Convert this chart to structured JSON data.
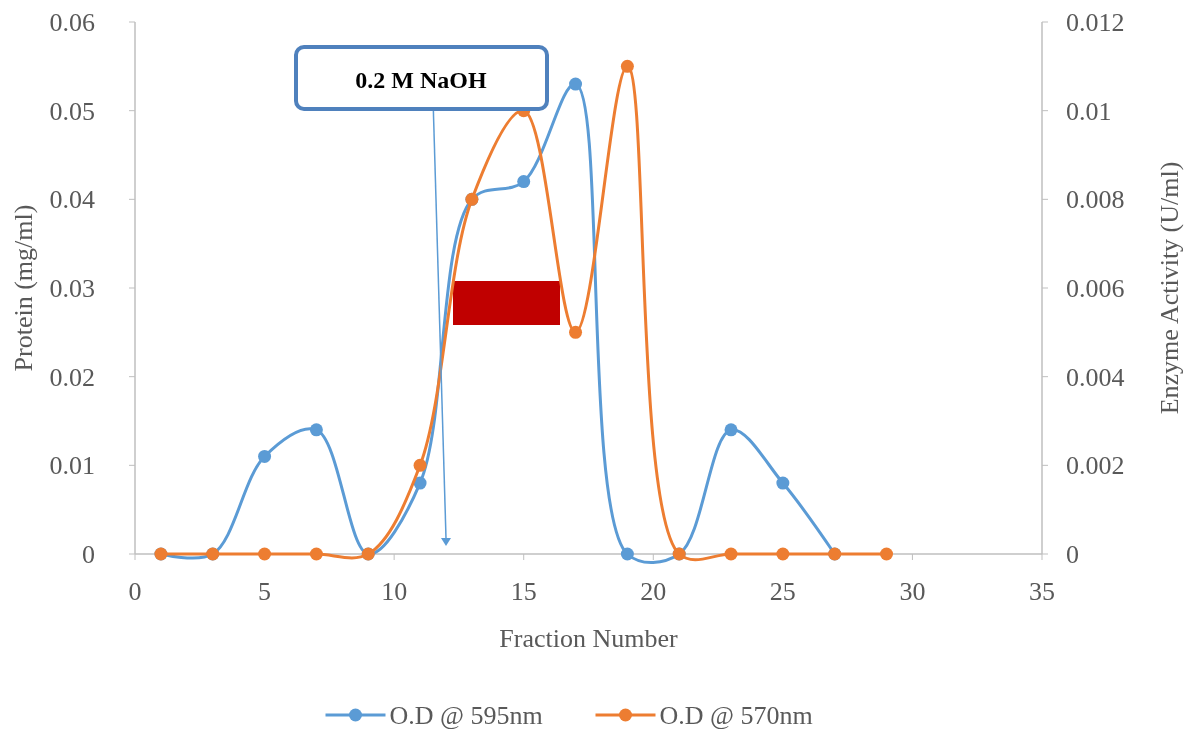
{
  "chart_data": {
    "type": "line",
    "xlabel": "Fraction Number",
    "ylabel": "Protein (mg/ml)",
    "y2label": "Enzyme Activity (U/ml)",
    "xlim": [
      0,
      35
    ],
    "xticks": [
      0,
      5,
      10,
      15,
      20,
      25,
      30,
      35
    ],
    "ylim": [
      0,
      0.06
    ],
    "yticks": [
      0,
      0.01,
      0.02,
      0.03,
      0.04,
      0.05,
      0.06
    ],
    "y2lim": [
      0,
      0.012
    ],
    "y2ticks": [
      0,
      0.002,
      0.004,
      0.006,
      0.008,
      0.01,
      0.012
    ],
    "series": [
      {
        "name": "O.D @ 595nm",
        "color": "#5b9bd5",
        "x": [
          1,
          3,
          5,
          7,
          9,
          11,
          13,
          15,
          17,
          19,
          21,
          23,
          25,
          27
        ],
        "values": [
          0,
          0,
          0.011,
          0.014,
          0,
          0.008,
          0.04,
          0.042,
          0.053,
          0,
          0,
          0.014,
          0.008,
          0
        ]
      },
      {
        "name": "O.D @ 570nm",
        "color": "#ed7d31",
        "axis": "y2",
        "x": [
          1,
          3,
          5,
          7,
          9,
          11,
          13,
          15,
          17,
          19,
          21,
          23,
          25,
          27,
          29
        ],
        "values": [
          0,
          0,
          0,
          0,
          0,
          0.002,
          0.008,
          0.01,
          0.005,
          0.011,
          0,
          0,
          0,
          0,
          0
        ]
      }
    ],
    "marker": "circle",
    "line_style": "solid",
    "grid": false,
    "legend": "bottom",
    "annotations": [
      "0.2 M NaOH"
    ]
  }
}
